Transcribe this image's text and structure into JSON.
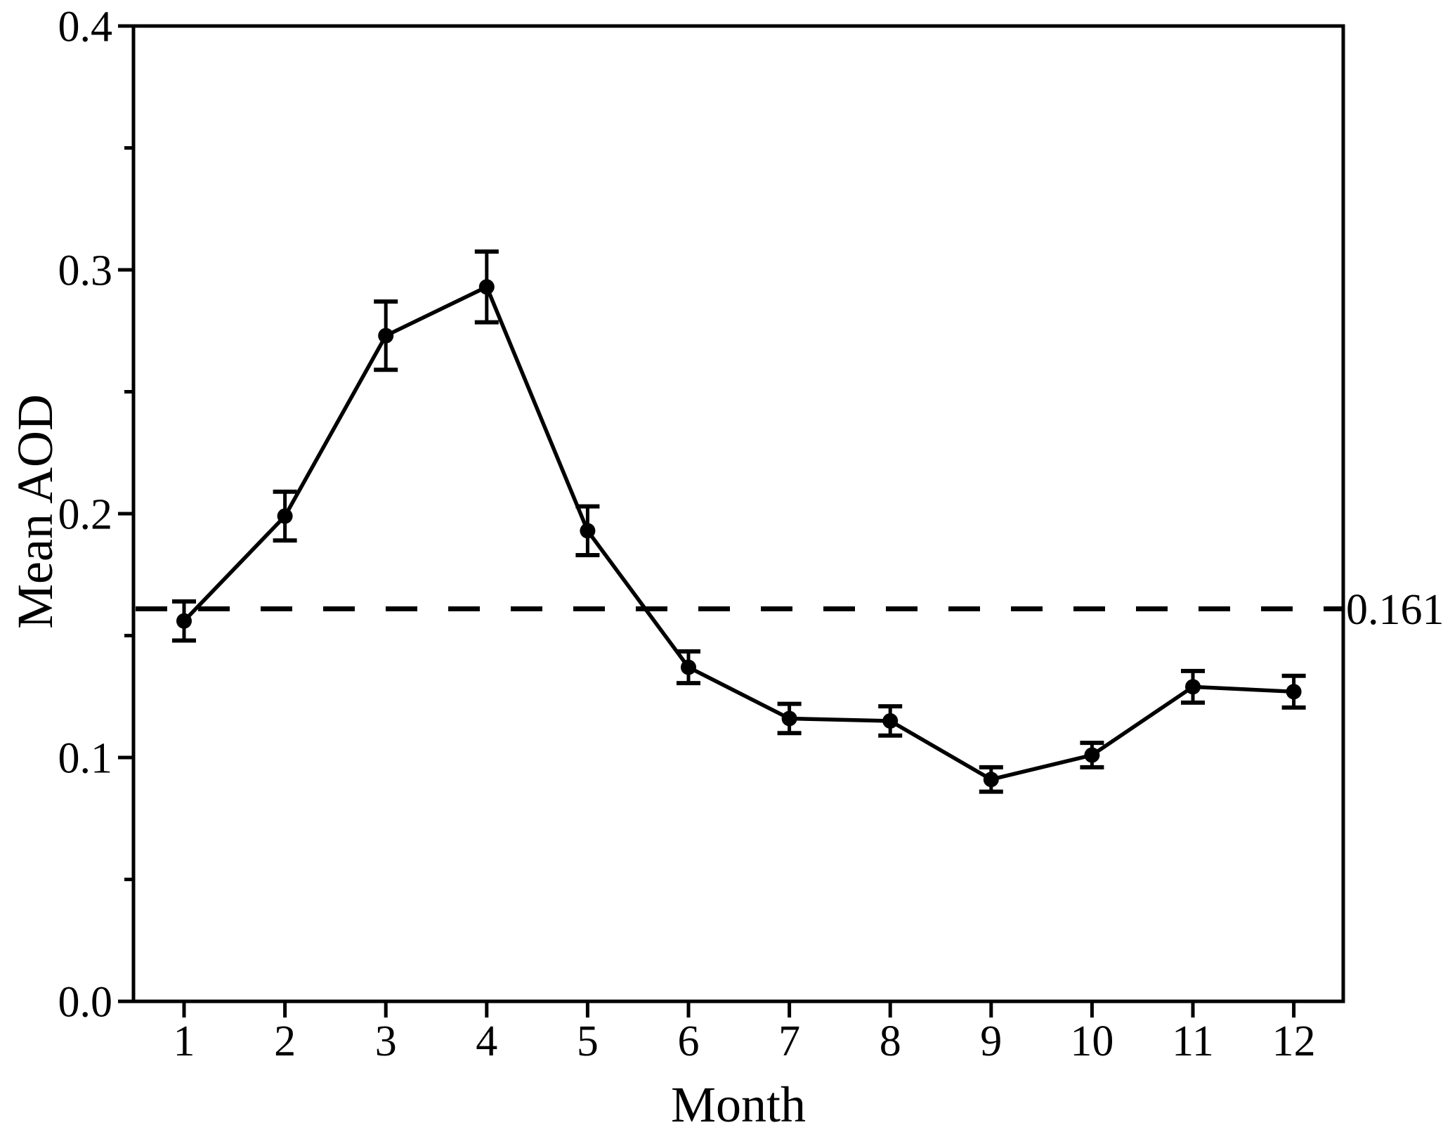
{
  "figure": {
    "background": "#ffffff",
    "ink_color": "#000000"
  },
  "chart_data": {
    "type": "line",
    "title": "",
    "xlabel": "Month",
    "ylabel": "Mean AOD",
    "x": [
      1,
      2,
      3,
      4,
      5,
      6,
      7,
      8,
      9,
      10,
      11,
      12
    ],
    "xtick_labels": [
      "1",
      "2",
      "3",
      "4",
      "5",
      "6",
      "7",
      "8",
      "9",
      "10",
      "11",
      "12"
    ],
    "ylim": [
      0.0,
      0.4
    ],
    "yticks": [
      0.0,
      0.1,
      0.2,
      0.3,
      0.4
    ],
    "ytick_labels": [
      "0.0",
      "0.1",
      "0.2",
      "0.3",
      "0.4"
    ],
    "minor_yticks": [
      0.05,
      0.15,
      0.25,
      0.35
    ],
    "grid": false,
    "legend_position": "none",
    "series": [
      {
        "name": "Mean AOD",
        "marker": "filled-circle",
        "line_style": "solid",
        "color": "#000000",
        "values": [
          0.156,
          0.199,
          0.273,
          0.293,
          0.193,
          0.137,
          0.116,
          0.115,
          0.091,
          0.101,
          0.129,
          0.127
        ],
        "errors": [
          0.008,
          0.01,
          0.014,
          0.0145,
          0.01,
          0.0065,
          0.006,
          0.006,
          0.005,
          0.005,
          0.0065,
          0.0065
        ]
      }
    ],
    "reference_line": {
      "value": 0.161,
      "label": "0.161",
      "style": "dashed",
      "color": "#000000"
    }
  }
}
